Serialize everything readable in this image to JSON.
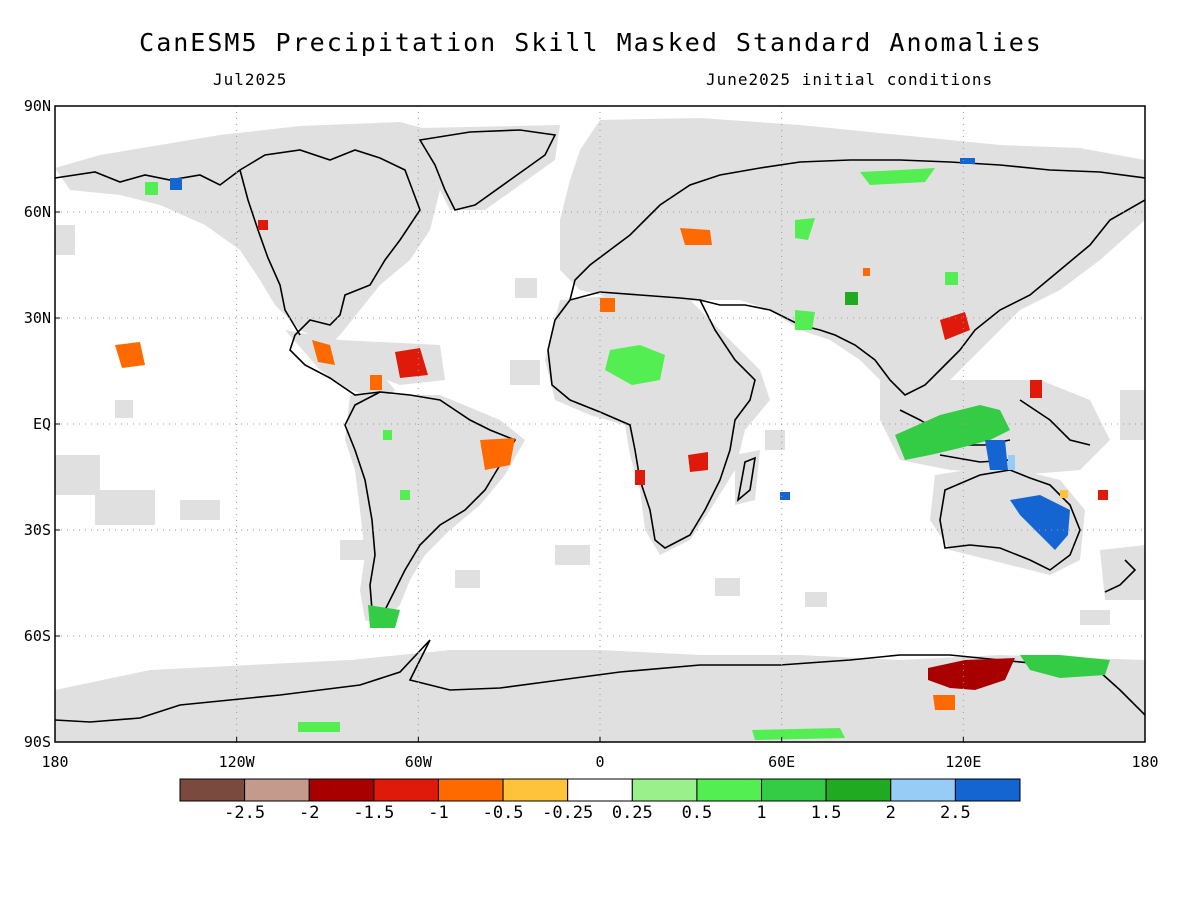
{
  "header": {
    "title": "CanESM5 Precipitation Skill Masked Standard Anomalies",
    "valid_month": "Jul2025",
    "init_conditions": "June2025 initial conditions"
  },
  "axes": {
    "lat_labels": [
      "90N",
      "60N",
      "30N",
      "EQ",
      "30S",
      "60S",
      "90S"
    ],
    "lon_labels": [
      "180",
      "120W",
      "60W",
      "0",
      "60E",
      "120E",
      "180"
    ]
  },
  "colorbar": {
    "colors": [
      "#7b4a3e",
      "#c49a8c",
      "#a80000",
      "#e01a0a",
      "#ff6a00",
      "#ffc23a",
      "#ffffff",
      "#9af08a",
      "#52ee52",
      "#33cc44",
      "#1faa22",
      "#96ccf6",
      "#1464d2"
    ],
    "labels": [
      "-2.5",
      "-2",
      "-1.5",
      "-1",
      "-0.5",
      "-0.25",
      "0.25",
      "0.5",
      "1",
      "1.5",
      "2",
      "2.5"
    ]
  },
  "colors": {
    "land_mask": "#e0e0e0",
    "ocean": "#ffffff",
    "coastline": "#000000",
    "grid": "#9a9a9a"
  }
}
